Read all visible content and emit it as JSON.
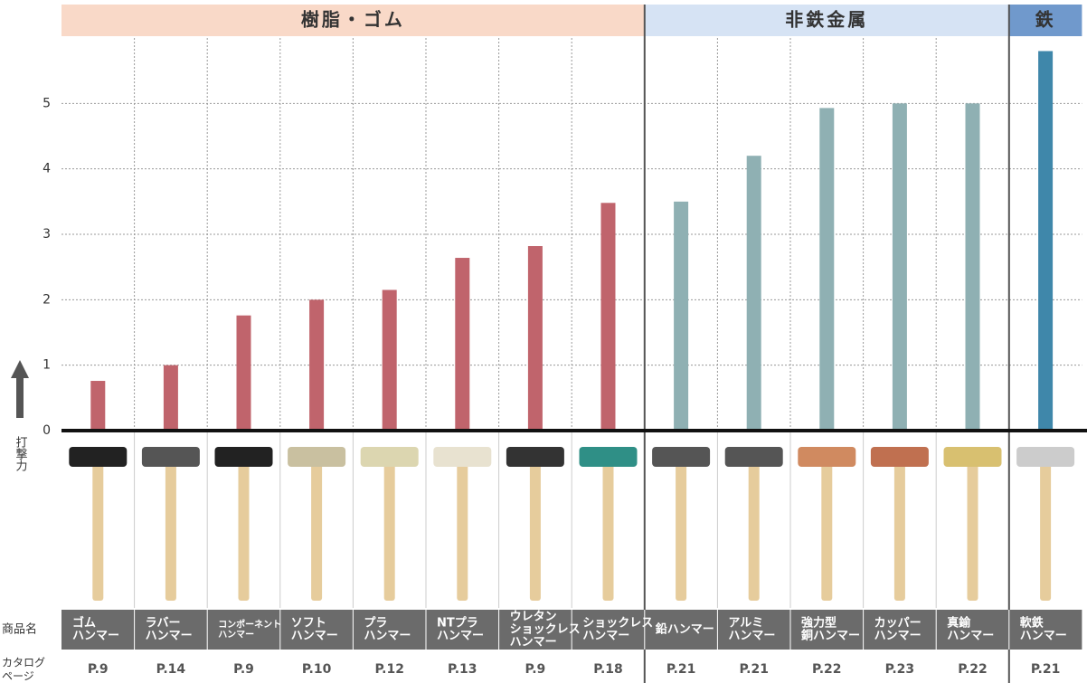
{
  "chart_data": {
    "type": "bar",
    "ylabel": "打撃力",
    "ylim": [
      0,
      6
    ],
    "yticks": [
      0,
      1,
      2,
      3,
      4,
      5
    ],
    "grid": true,
    "row_labels": {
      "name": [
        "商品名"
      ],
      "page": [
        "カタログ",
        "ページ"
      ]
    },
    "series": [
      {
        "name": "樹脂・ゴム",
        "color": "#c0646c",
        "header_color": "#f9d9c8",
        "categories": [
          [
            "ゴム",
            "ハンマー"
          ],
          [
            "ラバー",
            "ハンマー"
          ],
          [
            "コンポーネント",
            "ハンマー"
          ],
          [
            "ソフト",
            "ハンマー"
          ],
          [
            "プラ",
            "ハンマー"
          ],
          [
            "NTプラ",
            "ハンマー"
          ],
          [
            "ウレタン",
            "ショックレス",
            "ハンマー"
          ],
          [
            "ショックレス",
            "ハンマー"
          ]
        ],
        "values": [
          0.76,
          1.0,
          1.76,
          2.0,
          2.15,
          2.64,
          2.82,
          3.48
        ],
        "pages": [
          "P.9",
          "P.14",
          "P.9",
          "P.10",
          "P.12",
          "P.13",
          "P.9",
          "P.18"
        ]
      },
      {
        "name": "非鉄金属",
        "color": "#8fb0b3",
        "header_color": "#d6e3f4",
        "categories": [
          [
            "鉛ハンマー"
          ],
          [
            "アルミ",
            "ハンマー"
          ],
          [
            "強力型",
            "銅ハンマー"
          ],
          [
            "カッパー",
            "ハンマー"
          ],
          [
            "真鍮",
            "ハンマー"
          ]
        ],
        "values": [
          3.5,
          4.2,
          4.93,
          5.0,
          5.0
        ],
        "pages": [
          "P.21",
          "P.21",
          "P.22",
          "P.23",
          "P.22"
        ]
      },
      {
        "name": "鉄",
        "color": "#3f87aa",
        "header_color": "#7099cc",
        "categories": [
          [
            "軟鉄",
            "ハンマー"
          ]
        ],
        "values": [
          5.8
        ],
        "pages": [
          "P.21"
        ]
      }
    ]
  }
}
